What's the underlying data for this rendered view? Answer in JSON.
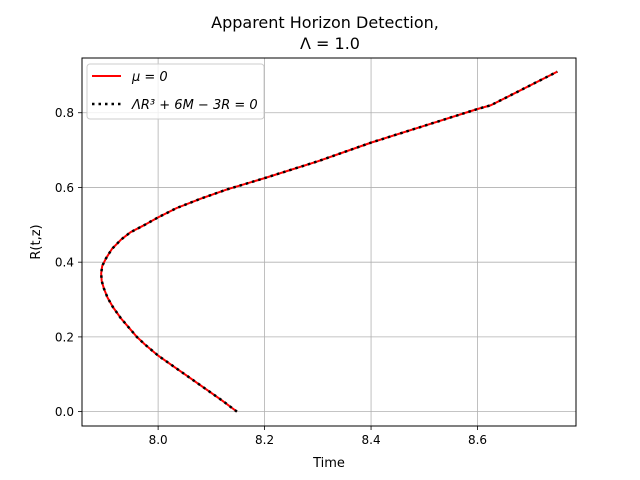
{
  "chart_data": {
    "type": "line",
    "title_line1": "Apparent Horizon Detection,",
    "title_line2": "Λ = 1.0",
    "xlabel": "Time",
    "ylabel": "R(t,z)",
    "xlim": [
      7.857,
      8.785
    ],
    "ylim": [
      -0.0385,
      0.9465
    ],
    "xticks": [
      8.0,
      8.2,
      8.4,
      8.6
    ],
    "xtick_labels": [
      "8.0",
      "8.2",
      "8.4",
      "8.6"
    ],
    "yticks": [
      0.0,
      0.2,
      0.4,
      0.6,
      0.8
    ],
    "ytick_labels": [
      "0.0",
      "0.2",
      "0.4",
      "0.6",
      "0.8"
    ],
    "grid": true,
    "legend_position": "top-left",
    "series": [
      {
        "name": "μ = 0",
        "style": "solid",
        "color": "#ff0000",
        "points": [
          [
            8.148,
            0.0
          ],
          [
            8.12,
            0.03
          ],
          [
            8.09,
            0.06
          ],
          [
            8.06,
            0.09
          ],
          [
            8.03,
            0.12
          ],
          [
            8.0,
            0.15
          ],
          [
            7.975,
            0.18
          ],
          [
            7.96,
            0.2
          ],
          [
            7.945,
            0.225
          ],
          [
            7.93,
            0.25
          ],
          [
            7.915,
            0.28
          ],
          [
            7.905,
            0.305
          ],
          [
            7.898,
            0.33
          ],
          [
            7.894,
            0.35
          ],
          [
            7.893,
            0.37
          ],
          [
            7.895,
            0.39
          ],
          [
            7.902,
            0.41
          ],
          [
            7.913,
            0.435
          ],
          [
            7.93,
            0.46
          ],
          [
            7.948,
            0.48
          ],
          [
            7.975,
            0.5
          ],
          [
            8.0,
            0.52
          ],
          [
            8.035,
            0.545
          ],
          [
            8.08,
            0.57
          ],
          [
            8.13,
            0.595
          ],
          [
            8.2,
            0.625
          ],
          [
            8.3,
            0.67
          ],
          [
            8.4,
            0.72
          ],
          [
            8.5,
            0.765
          ],
          [
            8.6,
            0.81
          ],
          [
            8.625,
            0.82
          ],
          [
            8.75,
            0.91
          ]
        ]
      },
      {
        "name": "ΛR³ + 6M − 3R = 0",
        "style": "dotted",
        "color": "#000000",
        "points": [
          [
            8.148,
            0.0
          ],
          [
            8.12,
            0.03
          ],
          [
            8.09,
            0.06
          ],
          [
            8.06,
            0.09
          ],
          [
            8.03,
            0.12
          ],
          [
            8.0,
            0.15
          ],
          [
            7.975,
            0.18
          ],
          [
            7.96,
            0.2
          ],
          [
            7.945,
            0.225
          ],
          [
            7.93,
            0.25
          ],
          [
            7.915,
            0.28
          ],
          [
            7.905,
            0.305
          ],
          [
            7.898,
            0.33
          ],
          [
            7.894,
            0.35
          ],
          [
            7.893,
            0.37
          ],
          [
            7.895,
            0.39
          ],
          [
            7.902,
            0.41
          ],
          [
            7.913,
            0.435
          ],
          [
            7.93,
            0.46
          ],
          [
            7.948,
            0.48
          ],
          [
            7.975,
            0.5
          ],
          [
            8.0,
            0.52
          ],
          [
            8.035,
            0.545
          ],
          [
            8.08,
            0.57
          ],
          [
            8.13,
            0.595
          ],
          [
            8.2,
            0.625
          ],
          [
            8.3,
            0.67
          ],
          [
            8.4,
            0.72
          ],
          [
            8.5,
            0.765
          ],
          [
            8.6,
            0.81
          ],
          [
            8.625,
            0.82
          ],
          [
            8.75,
            0.91
          ]
        ]
      }
    ]
  }
}
